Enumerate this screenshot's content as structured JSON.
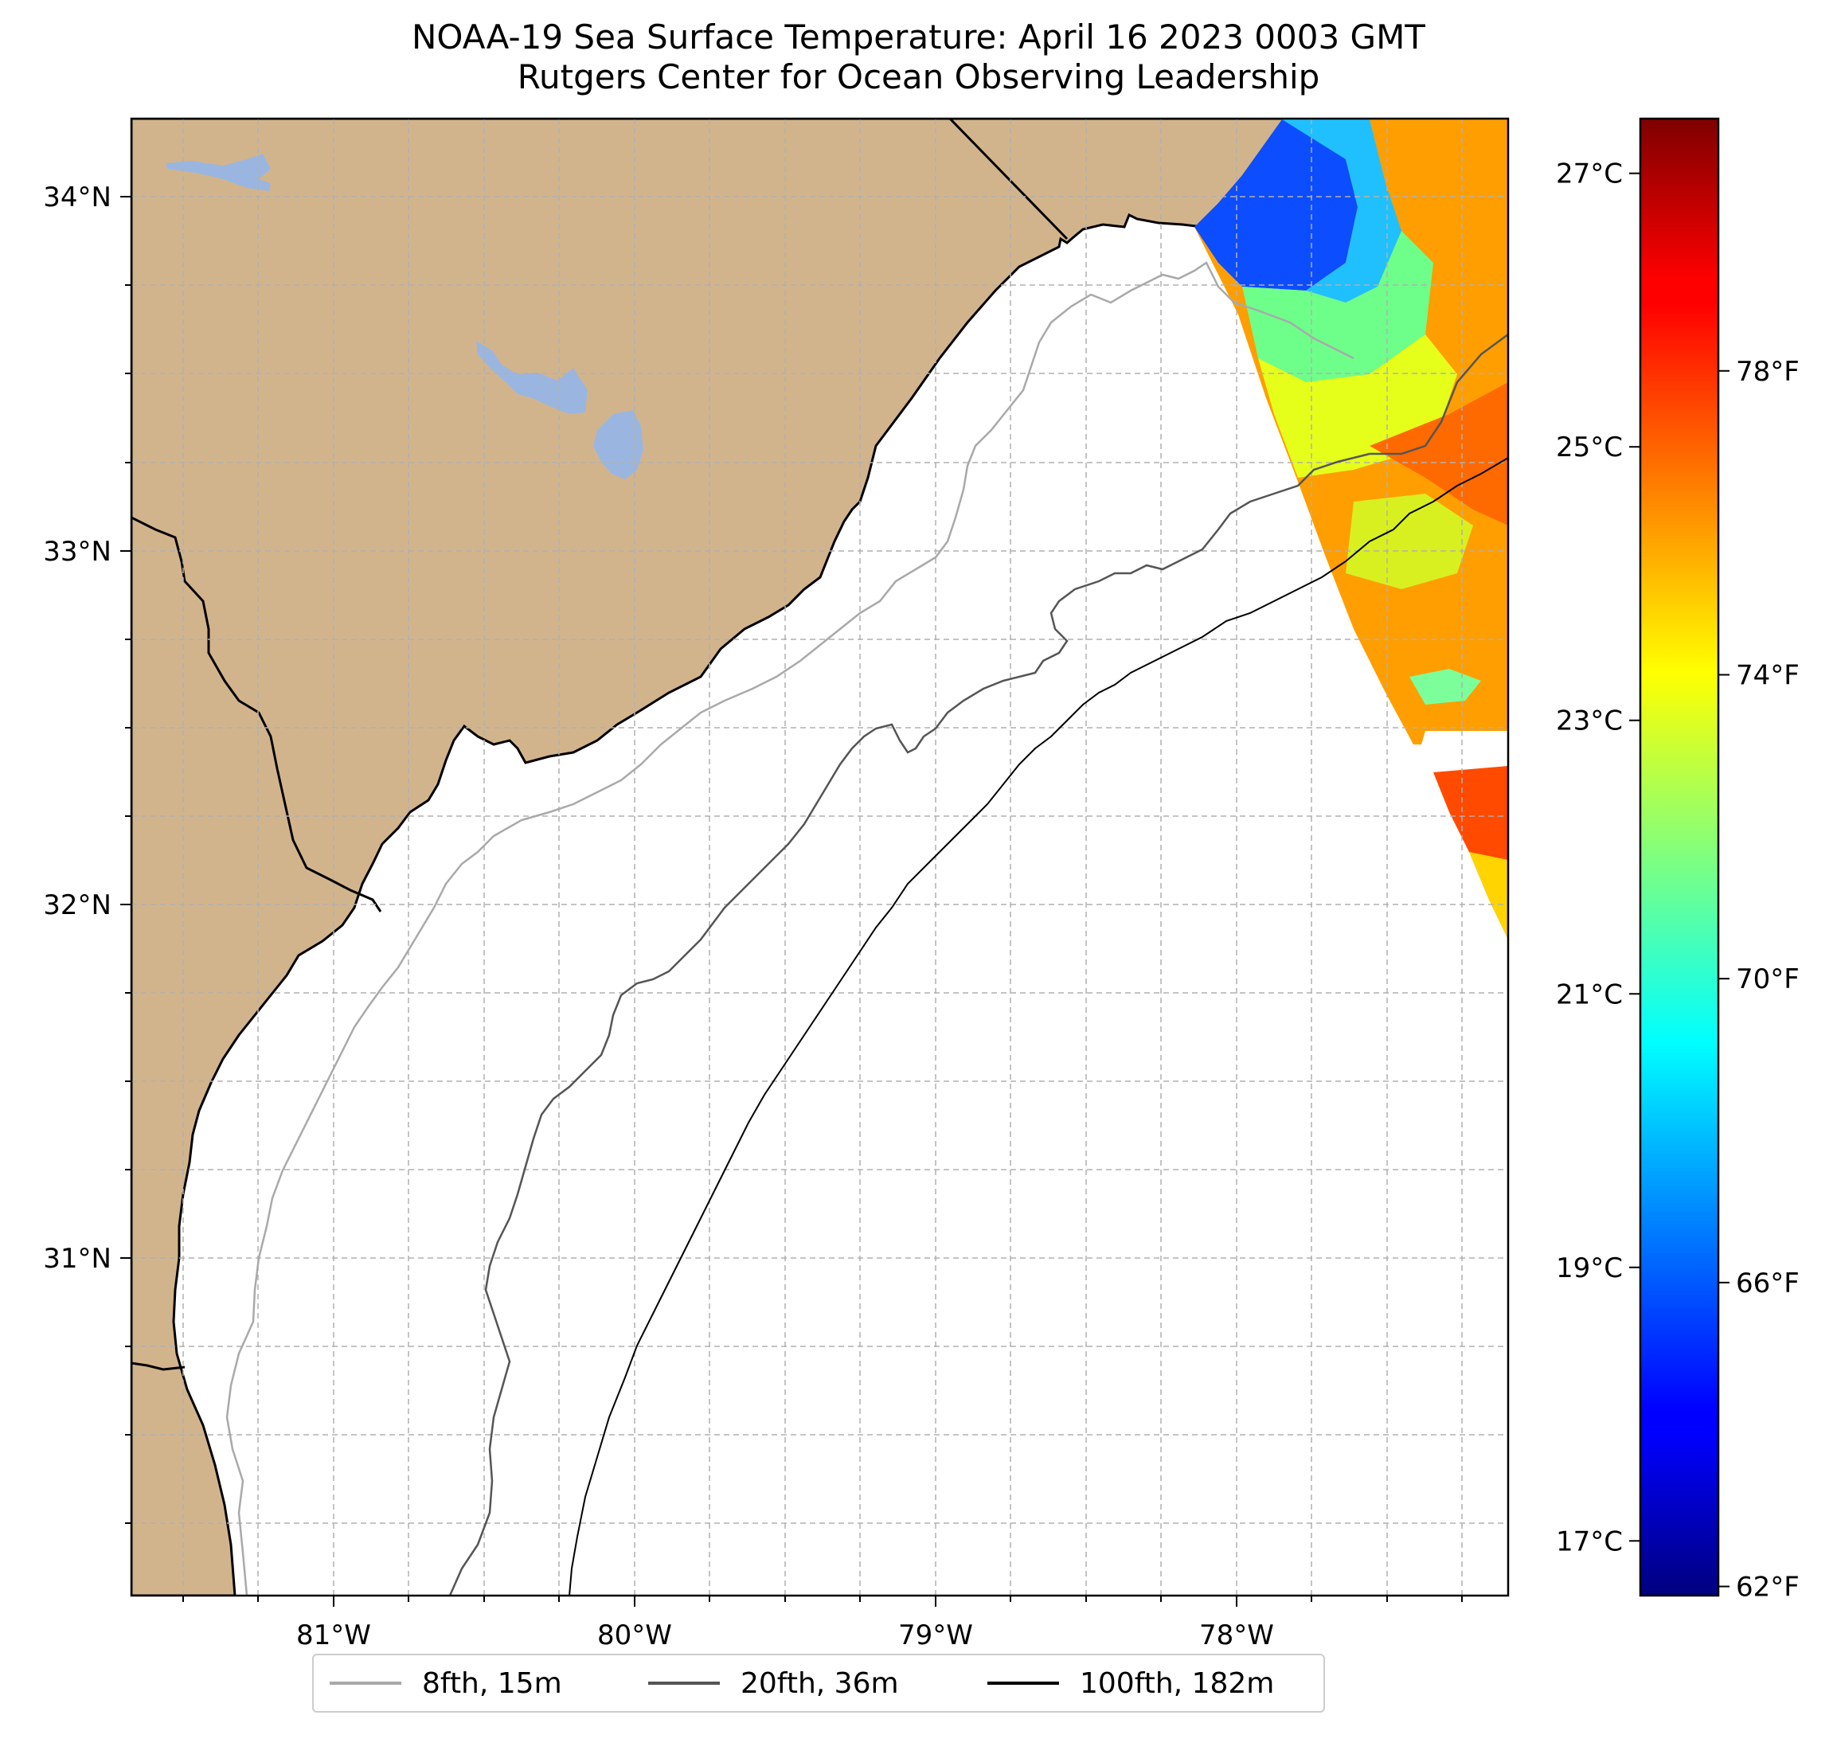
{
  "title": {
    "line1": "NOAA-19 Sea Surface Temperature: April 16 2023 0003 GMT",
    "line2": "Rutgers Center for Ocean Observing Leadership"
  },
  "map": {
    "lon_range": [
      -81.67,
      -77.12
    ],
    "lat_range": [
      30.07,
      34.22
    ],
    "land_color": "#d2b48c",
    "water_body_color": "#9ab6e0",
    "grid": true,
    "lon_ticks": [
      {
        "value": -81,
        "label": "81°W"
      },
      {
        "value": -80,
        "label": "80°W"
      },
      {
        "value": -79,
        "label": "79°W"
      },
      {
        "value": -78,
        "label": "78°W"
      }
    ],
    "lat_ticks": [
      {
        "value": 34,
        "label": "34°N"
      },
      {
        "value": 33,
        "label": "33°N"
      },
      {
        "value": 32,
        "label": "32°N"
      },
      {
        "value": 31,
        "label": "31°N"
      }
    ]
  },
  "colorbar": {
    "colormap": "jet",
    "min_c": 16.6,
    "max_c": 27.4,
    "celsius_ticks": [
      {
        "value": 27,
        "label": "27°C"
      },
      {
        "value": 25,
        "label": "25°C"
      },
      {
        "value": 23,
        "label": "23°C"
      },
      {
        "value": 21,
        "label": "21°C"
      },
      {
        "value": 19,
        "label": "19°C"
      },
      {
        "value": 17,
        "label": "17°C"
      }
    ],
    "fahrenheit_ticks": [
      {
        "value": 78,
        "label": "78°F"
      },
      {
        "value": 74,
        "label": "74°F"
      },
      {
        "value": 70,
        "label": "70°F"
      },
      {
        "value": 66,
        "label": "66°F"
      },
      {
        "value": 62,
        "label": "62°F"
      }
    ]
  },
  "legend": {
    "items": [
      {
        "label": "8fth, 15m",
        "color": "#a9a9a9"
      },
      {
        "label": "20fth, 36m",
        "color": "#555555"
      },
      {
        "label": "100fth, 182m",
        "color": "#000000"
      }
    ]
  }
}
